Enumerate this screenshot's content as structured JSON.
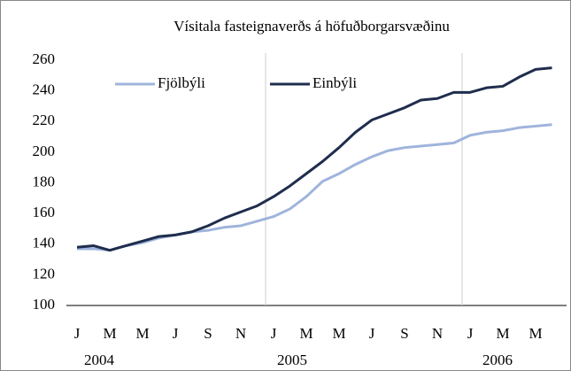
{
  "chart_data": {
    "type": "line",
    "title": "Vísitala fasteignaverðs á höfuðborgarsvæðinu",
    "categories": [
      "J",
      null,
      "M",
      null,
      "M",
      null,
      "J",
      null,
      "S",
      null,
      "N",
      null,
      "J",
      null,
      "M",
      null,
      "M",
      null,
      "J",
      null,
      "S",
      null,
      "N",
      null,
      "J",
      null,
      "M",
      null,
      "M",
      null
    ],
    "year_labels": [
      "2004",
      "2005",
      "2006"
    ],
    "series": [
      {
        "name": "Fjölbýli",
        "color": "#9fb4dc",
        "values": [
          137,
          137,
          136,
          139,
          141,
          144,
          146,
          148,
          149,
          151,
          152,
          155,
          158,
          163,
          171,
          181,
          186,
          192,
          197,
          201,
          203,
          204,
          205,
          206,
          211,
          213,
          214,
          216,
          217,
          218
        ]
      },
      {
        "name": "Einbýli",
        "color": "#1f2d4d",
        "values": [
          138,
          139,
          136,
          139,
          142,
          145,
          146,
          148,
          152,
          157,
          161,
          165,
          171,
          178,
          186,
          194,
          203,
          213,
          221,
          225,
          229,
          234,
          235,
          239,
          239,
          242,
          243,
          249,
          254,
          255
        ]
      }
    ],
    "ylim": [
      100,
      260
    ],
    "yticks": [
      100,
      120,
      140,
      160,
      180,
      200,
      220,
      240,
      260
    ],
    "grid": false
  }
}
